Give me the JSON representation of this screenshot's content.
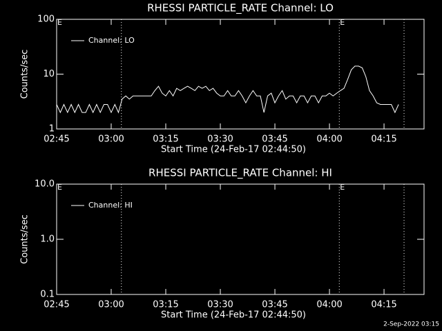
{
  "chart_data": [
    {
      "type": "line",
      "title": "RHESSI PARTICLE_RATE Channel: LO",
      "xlabel": "Start Time (24-Feb-17 02:44:50)",
      "ylabel": "Counts/sec",
      "log_y": true,
      "legend": "top-left",
      "xlim": [
        165,
        266
      ],
      "ylim": [
        1,
        100
      ],
      "xticks": [
        {
          "value": 165,
          "label": "02:45"
        },
        {
          "value": 180,
          "label": "03:00"
        },
        {
          "value": 195,
          "label": "03:15"
        },
        {
          "value": 210,
          "label": "03:30"
        },
        {
          "value": 225,
          "label": "03:45"
        },
        {
          "value": 240,
          "label": "04:00"
        },
        {
          "value": 255,
          "label": "04:15"
        }
      ],
      "yticks": [
        1,
        10,
        100
      ],
      "vlines": [
        182.8,
        242.7,
        260.5
      ],
      "annotations": [
        {
          "x": 165,
          "text": "E"
        },
        {
          "x": 242.7,
          "text": "E"
        }
      ],
      "x": [
        165,
        166,
        167,
        168,
        169,
        170,
        171,
        172,
        173,
        174,
        175,
        176,
        177,
        178,
        179,
        180,
        181,
        182,
        183,
        184,
        185,
        186,
        187,
        188,
        189,
        190,
        191,
        192,
        193,
        194,
        195,
        196,
        197,
        198,
        199,
        200,
        201,
        202,
        203,
        204,
        205,
        206,
        207,
        208,
        209,
        210,
        211,
        212,
        213,
        214,
        215,
        216,
        217,
        218,
        219,
        220,
        221,
        222,
        223,
        224,
        225,
        226,
        227,
        228,
        229,
        230,
        231,
        232,
        233,
        234,
        235,
        236,
        237,
        238,
        239,
        240,
        241,
        242,
        243,
        244,
        245,
        246,
        247,
        248,
        249,
        250,
        251,
        252,
        253,
        254,
        255,
        256,
        257,
        258,
        259
      ],
      "series": [
        {
          "name": "Channel: LO",
          "color": "#ffffff",
          "values": [
            2.8,
            2,
            2.8,
            2,
            2.8,
            2,
            2.8,
            2,
            2,
            2.8,
            2,
            2.8,
            2,
            2.8,
            2.8,
            2,
            2.8,
            2,
            3.5,
            4,
            3.5,
            4,
            4,
            4,
            4,
            4,
            4,
            5,
            6,
            4.5,
            4,
            5,
            4,
            5.5,
            5,
            5.5,
            6,
            5.5,
            5,
            6,
            5.5,
            6,
            5,
            5.5,
            4.5,
            4,
            4,
            5,
            4,
            4,
            5,
            4,
            3,
            4,
            5,
            4,
            4,
            2,
            4,
            4.5,
            3,
            4,
            5,
            3.5,
            4,
            4,
            3,
            4,
            4,
            3,
            4,
            4,
            3,
            4,
            4,
            4.5,
            4,
            4.5,
            5,
            5.5,
            8,
            12,
            14,
            14,
            13,
            9,
            5,
            4,
            3,
            2.8,
            2.8,
            2.8,
            2.8,
            2,
            2.8
          ]
        }
      ]
    },
    {
      "type": "line",
      "title": "RHESSI PARTICLE_RATE Channel: HI",
      "xlabel": "Start Time (24-Feb-17 02:44:50)",
      "ylabel": "Counts/sec",
      "log_y": true,
      "legend": "top-left",
      "xlim": [
        165,
        266
      ],
      "ylim": [
        0.1,
        10
      ],
      "xticks": [
        {
          "value": 165,
          "label": "02:45"
        },
        {
          "value": 180,
          "label": "03:00"
        },
        {
          "value": 195,
          "label": "03:15"
        },
        {
          "value": 210,
          "label": "03:30"
        },
        {
          "value": 225,
          "label": "03:45"
        },
        {
          "value": 240,
          "label": "04:00"
        },
        {
          "value": 255,
          "label": "04:15"
        }
      ],
      "yticks": [
        {
          "value": 0.1,
          "label": "0.1"
        },
        {
          "value": 1,
          "label": "1.0"
        },
        {
          "value": 10,
          "label": "10.0"
        }
      ],
      "vlines": [
        182.8,
        242.7,
        260.5
      ],
      "annotations": [
        {
          "x": 165,
          "text": "E"
        },
        {
          "x": 242.7,
          "text": "E"
        }
      ],
      "x": [],
      "series": [
        {
          "name": "Channel: HI",
          "color": "#ffffff",
          "values": []
        }
      ]
    }
  ],
  "footer": "2-Sep-2022 03:15"
}
